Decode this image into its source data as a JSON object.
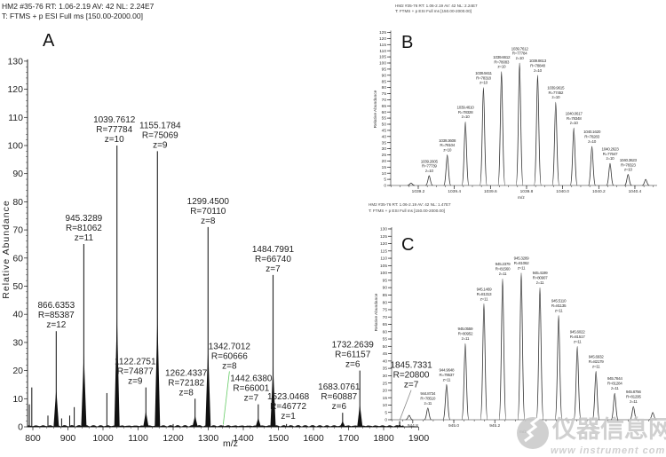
{
  "watermark": {
    "cn": "仪器信息网",
    "url": "www instrument com cn"
  },
  "chart_data": [
    {
      "panel": "A",
      "type": "line",
      "header": [
        "HM2 #35-76  RT: 1.06-2.19  AV: 42  NL: 2.24E7",
        "T: FTMS + p ESI Full ms [150.00-2000.00]"
      ],
      "xlabel": "m/z",
      "ylabel": "Relative Abundance",
      "xlim": [
        785,
        1900
      ],
      "ylim": [
        0,
        130
      ],
      "xticks": [
        800,
        900,
        1000,
        1100,
        1200,
        1300,
        1400,
        1500,
        1600,
        1700,
        1800,
        1900
      ],
      "yticks": [
        0,
        10,
        20,
        30,
        40,
        50,
        60,
        70,
        80,
        90,
        100,
        110,
        120,
        130
      ],
      "peaks": [
        {
          "mz": 866.6353,
          "y": 34,
          "label": [
            "866.6353",
            "R=85387",
            "z=12"
          ]
        },
        {
          "mz": 945.3289,
          "y": 65,
          "label": [
            "945.3289",
            "R=81062",
            "z=11"
          ]
        },
        {
          "mz": 1039.7612,
          "y": 100,
          "label": [
            "1039.7612",
            "R=77784",
            "z=10"
          ]
        },
        {
          "mz": 1122.2751,
          "y": 14,
          "label": [
            "1122.2751",
            "R=74877",
            "z=9"
          ]
        },
        {
          "mz": 1155.1784,
          "y": 98,
          "label": [
            "1155.1784",
            "R=75069",
            "z=9"
          ]
        },
        {
          "mz": 1262.4337,
          "y": 10,
          "label": [
            "1262.4337",
            "R=72182",
            "z=8"
          ]
        },
        {
          "mz": 1299.45,
          "y": 71,
          "label": [
            "1299.4500",
            "R=70110",
            "z=8"
          ]
        },
        {
          "mz": 1342.7012,
          "y": 0.5,
          "label": [
            "1342.7012",
            "R=60666",
            "z=8"
          ]
        },
        {
          "mz": 1442.638,
          "y": 8,
          "label": [
            "1442.6380",
            "R=66001",
            "z=7"
          ]
        },
        {
          "mz": 1484.7991,
          "y": 54,
          "label": [
            "1484.7991",
            "R=66740",
            "z=7"
          ]
        },
        {
          "mz": 1523.0468,
          "y": 1,
          "label": [
            "1523.0468",
            "R=46772",
            "z=1"
          ]
        },
        {
          "mz": 1683.0761,
          "y": 5,
          "label": [
            "1683.0761",
            "R=60887",
            "z=6"
          ]
        },
        {
          "mz": 1732.2639,
          "y": 20,
          "label": [
            "1732.2639",
            "R=61157",
            "z=6"
          ]
        },
        {
          "mz": 1845.7331,
          "y": 2,
          "label": [
            "1845.7331",
            "R=20800",
            "z=7"
          ]
        }
      ],
      "minor_peaks": [
        {
          "mz": 790,
          "y": 8
        },
        {
          "mz": 797,
          "y": 14
        },
        {
          "mz": 843,
          "y": 4
        },
        {
          "mz": 882,
          "y": 3
        },
        {
          "mz": 905,
          "y": 4
        },
        {
          "mz": 918,
          "y": 7
        },
        {
          "mz": 1011,
          "y": 12
        },
        {
          "mz": 1200,
          "y": 1
        }
      ]
    },
    {
      "panel": "B",
      "type": "line",
      "header": [
        "HM2 #35-76  RT: 1.06-2.19  AV: 42  NL: 2.24E7",
        "T: FTMS + p ESI Full ms [150.00-2000.00]"
      ],
      "xlabel": "m/z",
      "ylabel": "Relative Abundance",
      "xlim": [
        1039.05,
        1040.52
      ],
      "ylim": [
        0,
        125
      ],
      "xticks": [
        1039.2,
        1039.4,
        1039.6,
        1039.8,
        1040.0,
        1040.2,
        1040.4
      ],
      "yticks": [
        0,
        5,
        10,
        15,
        20,
        25,
        30,
        35,
        40,
        45,
        50,
        55,
        60,
        65,
        70,
        75,
        80,
        85,
        90,
        95,
        100,
        105,
        110,
        115,
        120,
        125
      ],
      "peaks": [
        {
          "mz": 1039.16,
          "y": 2
        },
        {
          "mz": 1039.2605,
          "y": 8,
          "label": [
            "1039.2605",
            "R=77739",
            "z=10"
          ]
        },
        {
          "mz": 1039.3608,
          "y": 25,
          "label": [
            "1039.3608",
            "R=78104",
            "z=10"
          ]
        },
        {
          "mz": 1039.461,
          "y": 52,
          "label": [
            "1039.4610",
            "R=78328",
            "z=10"
          ]
        },
        {
          "mz": 1039.5611,
          "y": 80,
          "label": [
            "1039.5611",
            "R=78318",
            "z=10"
          ]
        },
        {
          "mz": 1039.6612,
          "y": 93,
          "label": [
            "1039.6612",
            "R=78083",
            "z=10"
          ]
        },
        {
          "mz": 1039.7612,
          "y": 100,
          "label": [
            "1039.7612",
            "R=77784",
            "z=10"
          ]
        },
        {
          "mz": 1039.8613,
          "y": 90,
          "label": [
            "1039.8613",
            "R=78848",
            "z=10"
          ]
        },
        {
          "mz": 1039.9615,
          "y": 68,
          "label": [
            "1039.9615",
            "R=77452",
            "z=10"
          ]
        },
        {
          "mz": 1040.0617,
          "y": 47,
          "label": [
            "1040.0617",
            "R=78348",
            "z=10"
          ]
        },
        {
          "mz": 1040.162,
          "y": 32,
          "label": [
            "1040.1620",
            "R=78283",
            "z=10"
          ]
        },
        {
          "mz": 1040.2623,
          "y": 18,
          "label": [
            "1040.2623",
            "R=77647",
            "z=10"
          ]
        },
        {
          "mz": 1040.3623,
          "y": 9,
          "label": [
            "1040.3623",
            "R=78323",
            "z=10"
          ]
        },
        {
          "mz": 1040.46,
          "y": 5
        }
      ]
    },
    {
      "panel": "C",
      "type": "line",
      "header": [
        "HM2 #35-76  RT: 1.06-2.19  AV: 42  NL: 1.47E7",
        "T: FTMS + p ESI Full ms [150.00-2000.00]"
      ],
      "xlabel": "m/z",
      "ylabel": "Relative Abundance",
      "xlim": [
        944.72,
        946.02
      ],
      "ylim": [
        0,
        130
      ],
      "xticks": [
        944.8,
        945.0,
        945.2
      ],
      "yticks": [
        0,
        5,
        10,
        15,
        20,
        25,
        30,
        35,
        40,
        45,
        50,
        55,
        60,
        65,
        70,
        75,
        80,
        85,
        90,
        95,
        100,
        105,
        110,
        115,
        120,
        125,
        130
      ],
      "peaks": [
        {
          "mz": 944.7823,
          "y": 3
        },
        {
          "mz": 944.8734,
          "y": 8,
          "label": [
            "944.8734",
            "R=78510",
            "z=11"
          ]
        },
        {
          "mz": 944.9648,
          "y": 24,
          "label": [
            "944.9648",
            "R=79537",
            "z=11"
          ]
        },
        {
          "mz": 945.0559,
          "y": 52,
          "label": [
            "945.0559",
            "R=80952",
            "z=11"
          ]
        },
        {
          "mz": 945.1469,
          "y": 79,
          "label": [
            "945.1469",
            "R=81313",
            "z=11"
          ]
        },
        {
          "mz": 945.2379,
          "y": 96,
          "label": [
            "945.2379",
            "R=81560",
            "z=11"
          ]
        },
        {
          "mz": 945.3289,
          "y": 100,
          "label": [
            "945.3289",
            "R=81062",
            "z=11"
          ]
        },
        {
          "mz": 945.4199,
          "y": 90,
          "label": [
            "945.4199",
            "R=80907",
            "z=11"
          ]
        },
        {
          "mz": 945.511,
          "y": 71,
          "label": [
            "945.5110",
            "R=81135",
            "z=11"
          ]
        },
        {
          "mz": 945.6022,
          "y": 50,
          "label": [
            "945.6022",
            "R=81517",
            "z=11"
          ]
        },
        {
          "mz": 945.6932,
          "y": 33,
          "label": [
            "945.6932",
            "R=82179",
            "z=11"
          ]
        },
        {
          "mz": 945.7844,
          "y": 18,
          "label": [
            "945.7844",
            "R=81284",
            "z=11"
          ]
        },
        {
          "mz": 945.8756,
          "y": 9,
          "label": [
            "945.8756",
            "R=81295",
            "z=11"
          ]
        },
        {
          "mz": 945.97,
          "y": 5
        }
      ]
    }
  ]
}
